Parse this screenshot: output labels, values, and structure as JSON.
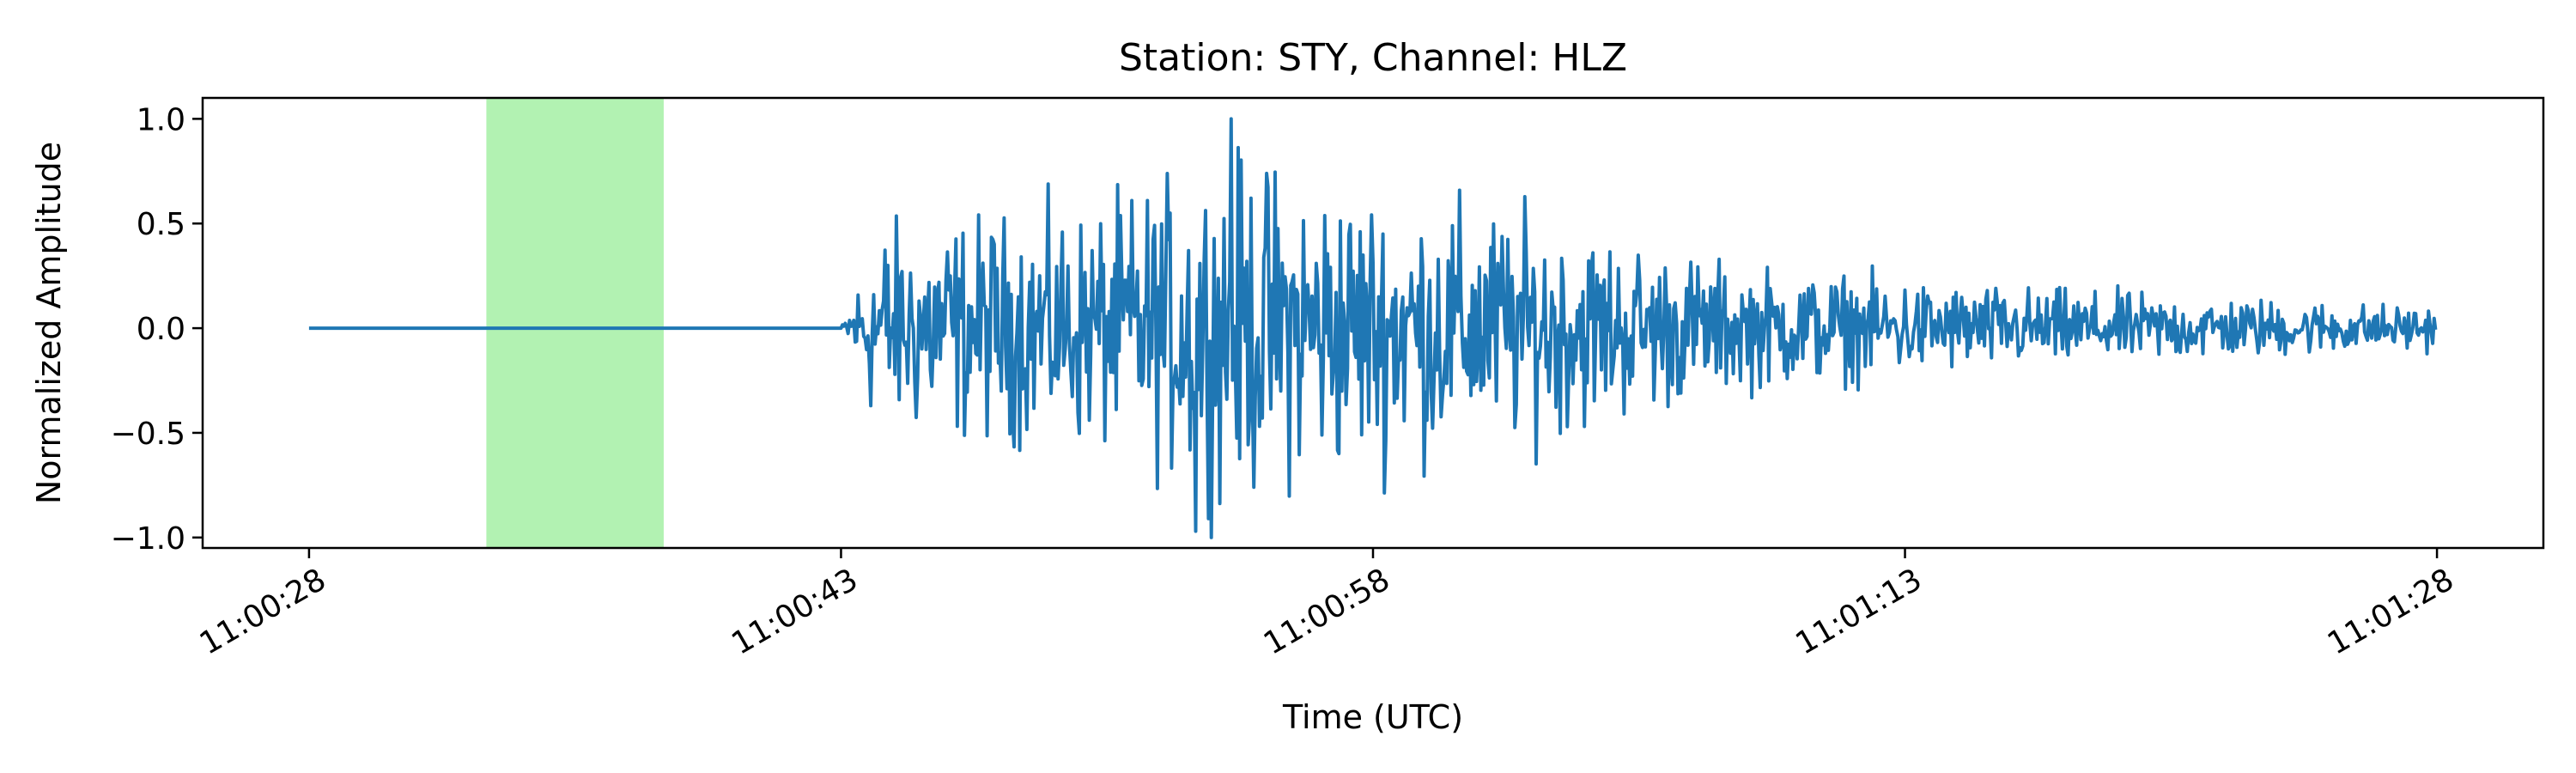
{
  "chart_data": {
    "type": "line",
    "title": "Station: STY, Channel: HLZ",
    "xlabel": "Time (UTC)",
    "ylabel": "Normalized Amplitude",
    "x_unit": "time",
    "xlim": [
      "11:00:25",
      "11:01:31"
    ],
    "ylim": [
      -1.05,
      1.1
    ],
    "x_ticks": [
      "11:00:28",
      "11:00:43",
      "11:00:58",
      "11:01:13",
      "11:01:28"
    ],
    "y_ticks": [
      -1.0,
      -0.5,
      0.0,
      0.5,
      1.0
    ],
    "y_tick_labels": [
      "−1.0",
      "−0.5",
      "0.0",
      "0.5",
      "1.0"
    ],
    "grid": false,
    "legend": "none",
    "highlight_span": {
      "start": "11:00:33",
      "end": "11:00:38",
      "color": "#b2f2b2"
    },
    "series": [
      {
        "color": "#1f77b4",
        "x_range": [
          "11:00:28",
          "11:01:28"
        ],
        "quiet_until": "11:00:43",
        "peak": {
          "time": "11:00:54",
          "value": 1.0
        },
        "trough": {
          "time": "11:00:53",
          "value": -0.97
        },
        "envelope": [
          {
            "time": "11:00:28",
            "amp": 0.0
          },
          {
            "time": "11:00:43",
            "amp": 0.0
          },
          {
            "time": "11:00:44",
            "amp": 0.5
          },
          {
            "time": "11:00:50",
            "amp": 0.55
          },
          {
            "time": "11:00:54",
            "amp": 0.8
          },
          {
            "time": "11:00:58",
            "amp": 0.65
          },
          {
            "time": "11:01:02",
            "amp": 0.55
          },
          {
            "time": "11:01:08",
            "amp": 0.3
          },
          {
            "time": "11:01:15",
            "amp": 0.2
          },
          {
            "time": "11:01:28",
            "amp": 0.1
          }
        ]
      }
    ]
  }
}
